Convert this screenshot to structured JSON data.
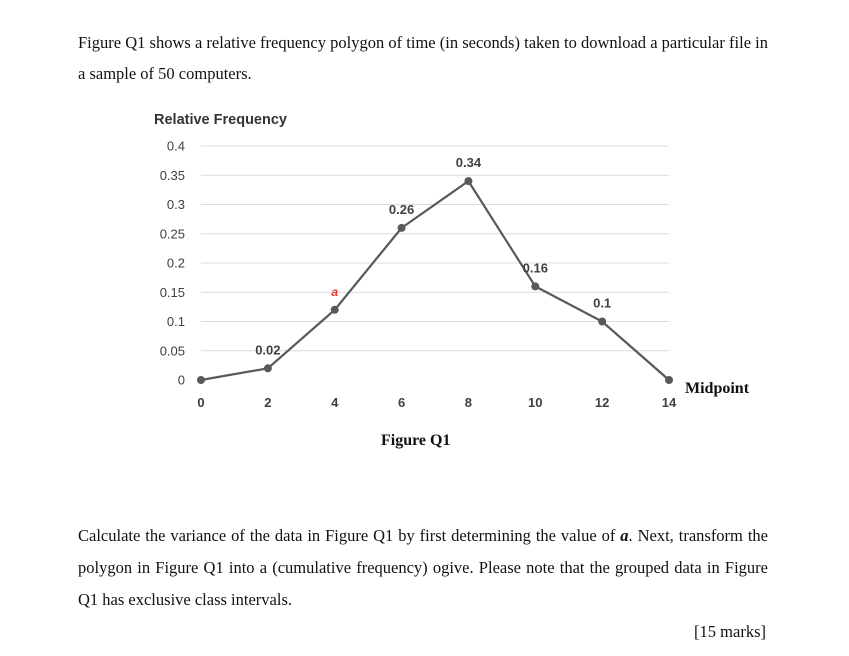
{
  "intro": "Figure Q1 shows a relative frequency polygon of time (in seconds) taken to download a particular file in a sample of 50 computers.",
  "question": {
    "part1": "Calculate the variance of the data in Figure Q1 by first determining the value of ",
    "var": "a",
    "part2": ". Next, transform the polygon in Figure Q1 into a (cumulative frequency) ogive. Please note that the grouped data in Figure Q1 has exclusive class intervals."
  },
  "marks": "[15 marks]",
  "caption": "Figure Q1",
  "chart_data": {
    "type": "line",
    "ylabel": "Relative Frequency",
    "xlabel": "Midpoint",
    "x": [
      0,
      2,
      4,
      6,
      8,
      10,
      12,
      14
    ],
    "values": [
      0,
      0.02,
      0.12,
      0.26,
      0.34,
      0.16,
      0.1,
      0
    ],
    "point_labels": [
      "",
      "0.02",
      "a",
      "0.26",
      "0.34",
      "0.16",
      "0.1",
      ""
    ],
    "xticks": [
      "0",
      "2",
      "4",
      "6",
      "8",
      "10",
      "12",
      "14"
    ],
    "yticks": [
      "0",
      "0.05",
      "0.1",
      "0.15",
      "0.2",
      "0.25",
      "0.3",
      "0.35",
      "0.4"
    ],
    "ylim": [
      0,
      0.4
    ],
    "xlim": [
      0,
      14
    ],
    "grid": true,
    "line_color": "#595959",
    "label_a_color": "#e8352b"
  }
}
